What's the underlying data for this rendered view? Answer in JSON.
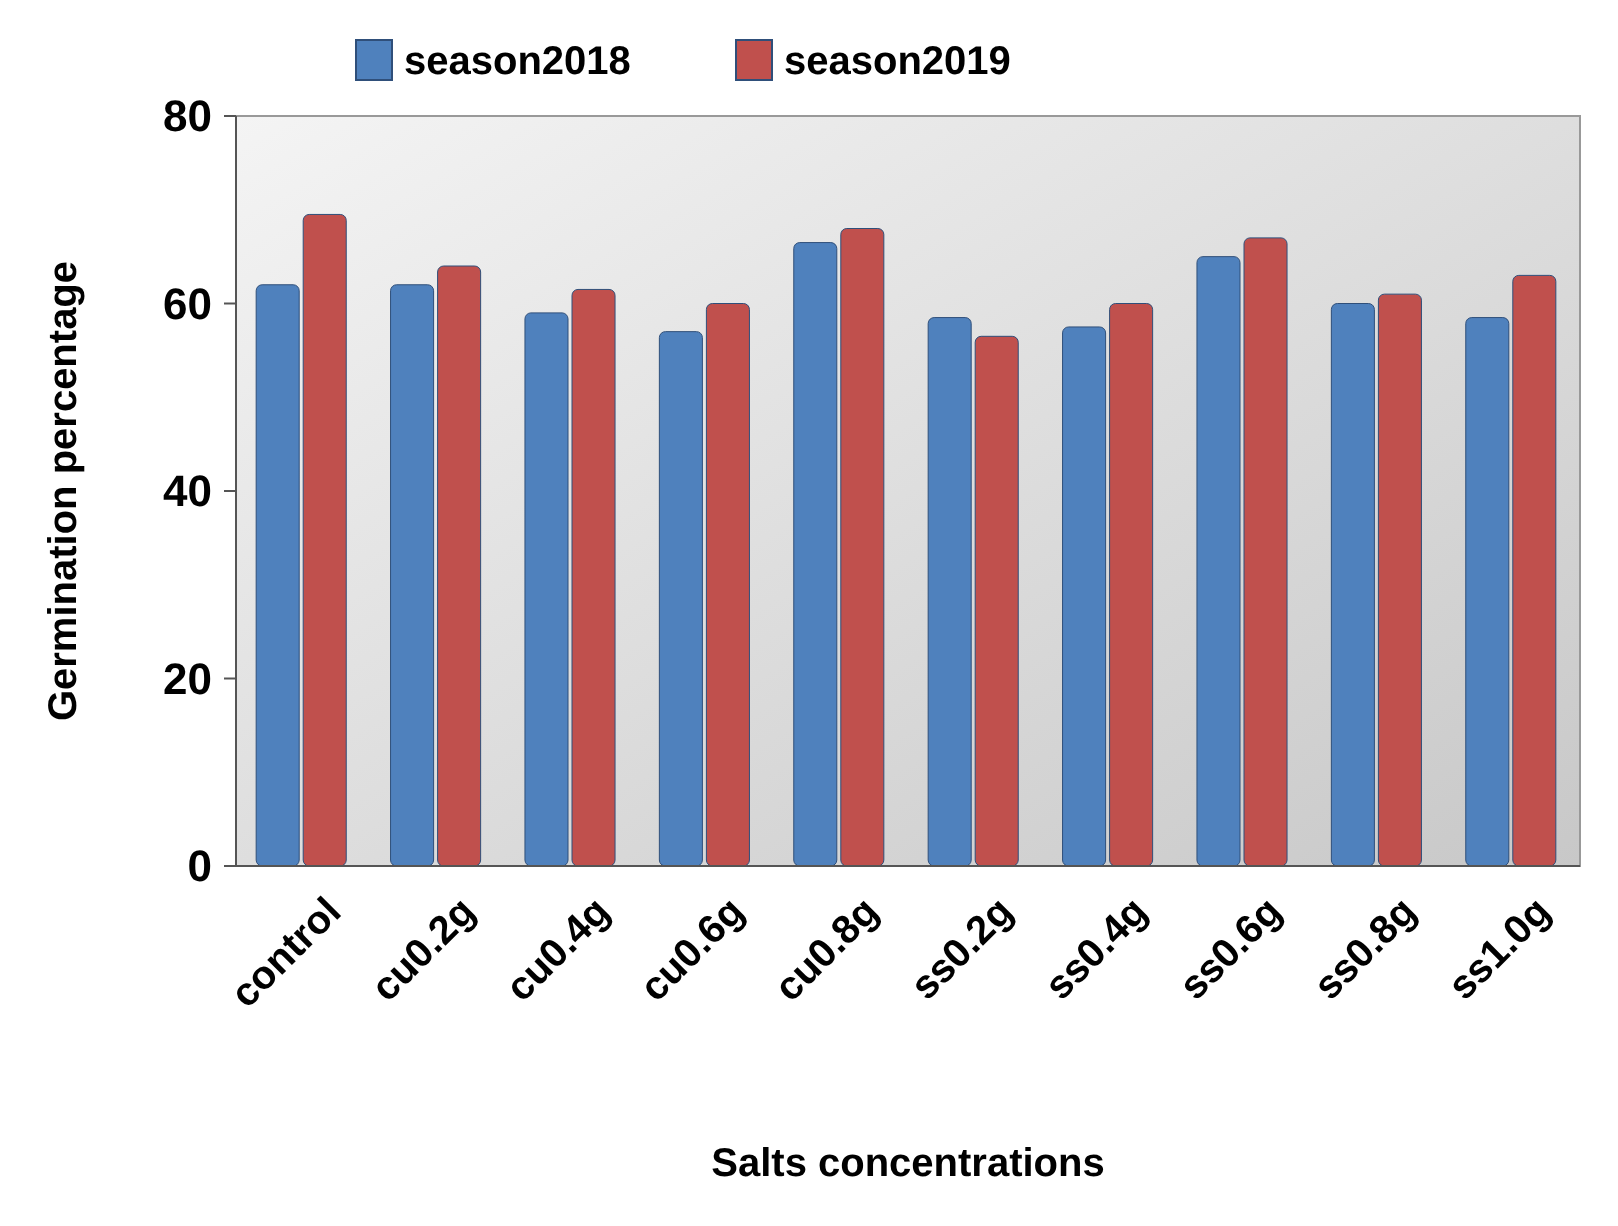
{
  "chart_data": {
    "type": "bar",
    "xlabel": "Salts concentrations",
    "ylabel": "Germination percentage",
    "categories": [
      "control",
      "cu0.2g",
      "cu0.4g",
      "cu0.6g",
      "cu0.8g",
      "ss0.2g",
      "ss0.4g",
      "ss0.6g",
      "ss0.8g",
      "ss1.0g"
    ],
    "series": [
      {
        "name": "season2018",
        "color": "#4f81bd",
        "values": [
          62,
          62,
          59,
          57,
          66.5,
          58.5,
          57.5,
          65,
          60,
          58.5
        ]
      },
      {
        "name": "season2019",
        "color": "#c0504d",
        "values": [
          69.5,
          64,
          61.5,
          60,
          68,
          56.5,
          60,
          67,
          61,
          63
        ]
      }
    ],
    "ylim": [
      0,
      80
    ],
    "yticks": [
      0,
      20,
      40,
      60,
      80
    ],
    "grid": false,
    "legend": "top"
  }
}
